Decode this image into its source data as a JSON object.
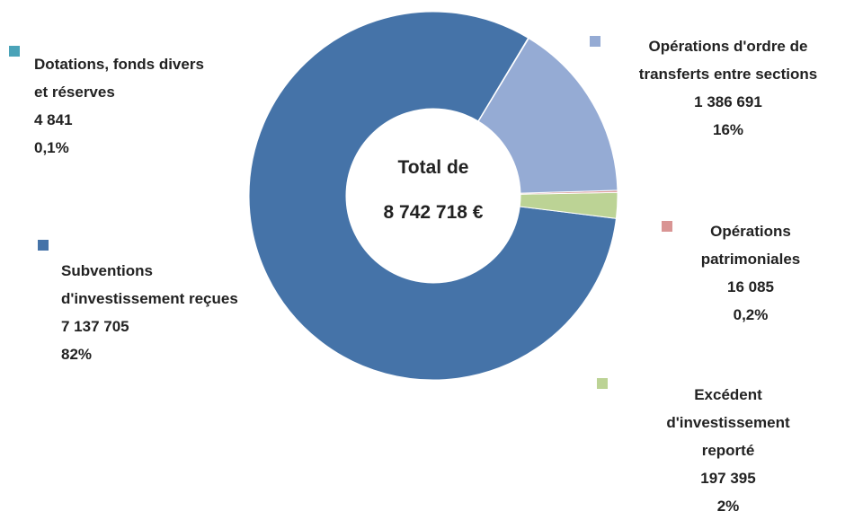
{
  "chart_data": {
    "type": "donut",
    "center_label": [
      "Total de",
      "8 742 718 €"
    ],
    "categories": [
      "Dotations, fonds divers et réserves",
      "Opérations d'ordre de transferts entre sections",
      "Opérations patrimoniales",
      "Excédent d'investissement reporté",
      "Subventions d'investissement reçues"
    ],
    "values": [
      4841,
      1386691,
      16085,
      197395,
      7137705
    ],
    "value_labels": [
      "4 841",
      "1 386 691",
      "16 085",
      "197 395",
      "7 137 705"
    ],
    "percents": [
      0.1,
      16,
      0.2,
      2,
      82
    ],
    "percent_labels": [
      "0,1%",
      "16%",
      "0,2%",
      "2%",
      "82%"
    ],
    "colors": [
      "#4aa3b8",
      "#95abd4",
      "#d99594",
      "#bcd395",
      "#4573a8"
    ]
  }
}
